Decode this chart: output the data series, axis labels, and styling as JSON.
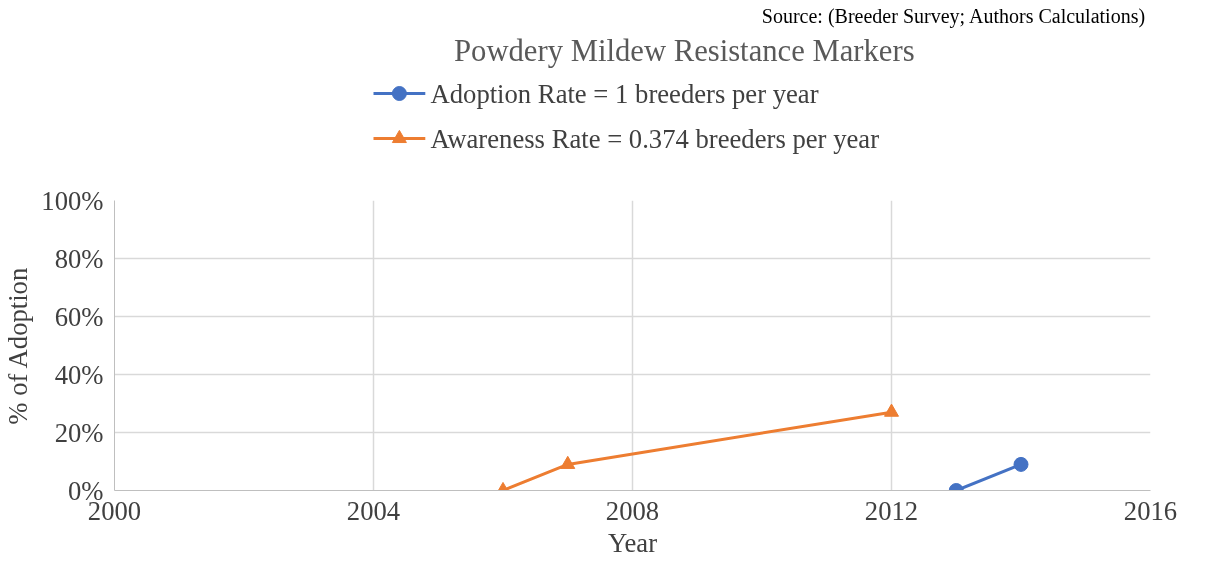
{
  "chart_data": {
    "type": "line",
    "title": "Powdery Mildew Resistance Markers",
    "xlabel": "Year",
    "ylabel": "% of Adoption",
    "annotations": [
      "Source: (Breeder Survey; Authors Calculations)"
    ],
    "series": [
      {
        "name": "Adoption Rate = 1 breeders per year",
        "color": "#4472c4",
        "marker": "circle",
        "x": [
          2013,
          2014
        ],
        "values": [
          0,
          9
        ]
      },
      {
        "name": "Awareness Rate = 0.374 breeders per year",
        "color": "#ed7d31",
        "marker": "triangle",
        "x": [
          2006,
          2007,
          2012
        ],
        "values": [
          0,
          9,
          27
        ]
      }
    ],
    "xlim": [
      2000,
      2016
    ],
    "xticks": [
      2000,
      2004,
      2008,
      2012,
      2016
    ],
    "ylim": [
      0,
      100
    ],
    "yticks": [
      {
        "value": 0,
        "label": "0%"
      },
      {
        "value": 20,
        "label": "20%"
      },
      {
        "value": 40,
        "label": "40%"
      },
      {
        "value": 60,
        "label": "60%"
      },
      {
        "value": 80,
        "label": "80%"
      },
      {
        "value": 100,
        "label": "100%"
      }
    ],
    "grid": true,
    "legend": "top",
    "line_style": "solid"
  }
}
